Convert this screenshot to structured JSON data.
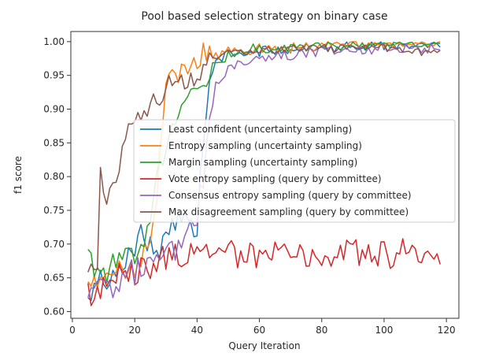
{
  "chart_data": {
    "type": "line",
    "title": "Pool based selection strategy on binary case",
    "xlabel": "Query Iteration",
    "ylabel": "f1 score",
    "xlim": [
      -0.5,
      124
    ],
    "ylim": [
      0.59,
      1.015
    ],
    "xticks": [
      0,
      20,
      40,
      60,
      80,
      100,
      120
    ],
    "yticks": [
      0.6,
      0.65,
      0.7,
      0.75,
      0.8,
      0.85,
      0.9,
      0.95,
      1.0
    ],
    "x_start": 5,
    "legend_position": "center-right",
    "grid": false,
    "series": [
      {
        "name": "Least confident (uncertainty sampling)",
        "color": "#1f77b4",
        "anchors": [
          [
            5,
            0.61
          ],
          [
            8,
            0.65
          ],
          [
            12,
            0.64
          ],
          [
            16,
            0.66
          ],
          [
            20,
            0.7
          ],
          [
            22,
            0.72
          ],
          [
            26,
            0.69
          ],
          [
            30,
            0.7
          ],
          [
            34,
            0.74
          ],
          [
            38,
            0.72
          ],
          [
            40,
            0.73
          ],
          [
            42,
            0.85
          ],
          [
            44,
            0.94
          ],
          [
            46,
            0.97
          ],
          [
            50,
            0.98
          ],
          [
            60,
            0.985
          ],
          [
            70,
            0.99
          ],
          [
            80,
            0.99
          ],
          [
            90,
            0.995
          ],
          [
            100,
            0.995
          ],
          [
            110,
            0.997
          ],
          [
            118,
            0.998
          ]
        ],
        "noise": [
          0.018,
          0.008
        ]
      },
      {
        "name": "Entropy sampling (uncertainty sampling)",
        "color": "#ff7f0e",
        "anchors": [
          [
            5,
            0.63
          ],
          [
            10,
            0.65
          ],
          [
            15,
            0.66
          ],
          [
            20,
            0.67
          ],
          [
            25,
            0.7
          ],
          [
            28,
            0.82
          ],
          [
            30,
            0.93
          ],
          [
            32,
            0.96
          ],
          [
            34,
            0.95
          ],
          [
            36,
            0.97
          ],
          [
            38,
            0.95
          ],
          [
            40,
            0.97
          ],
          [
            42,
            0.985
          ],
          [
            44,
            0.98
          ],
          [
            50,
            0.985
          ],
          [
            60,
            0.99
          ],
          [
            70,
            0.99
          ],
          [
            80,
            0.995
          ],
          [
            90,
            0.995
          ],
          [
            100,
            0.997
          ],
          [
            118,
            0.999
          ]
        ],
        "noise": [
          0.02,
          0.008
        ]
      },
      {
        "name": "Margin sampling (uncertainty sampling)",
        "color": "#2ca02c",
        "anchors": [
          [
            5,
            0.675
          ],
          [
            10,
            0.66
          ],
          [
            15,
            0.67
          ],
          [
            20,
            0.69
          ],
          [
            24,
            0.71
          ],
          [
            27,
            0.8
          ],
          [
            30,
            0.84
          ],
          [
            34,
            0.88
          ],
          [
            36,
            0.9
          ],
          [
            40,
            0.93
          ],
          [
            44,
            0.96
          ],
          [
            48,
            0.975
          ],
          [
            52,
            0.985
          ],
          [
            60,
            0.99
          ],
          [
            70,
            0.992
          ],
          [
            80,
            0.995
          ],
          [
            90,
            0.996
          ],
          [
            100,
            0.998
          ],
          [
            118,
            1.0
          ]
        ],
        "noise": [
          0.02,
          0.008
        ]
      },
      {
        "name": "Vote entropy sampling (query by committee)",
        "color": "#d62728",
        "anchors": [
          [
            5,
            0.62
          ],
          [
            10,
            0.64
          ],
          [
            15,
            0.65
          ],
          [
            20,
            0.66
          ],
          [
            25,
            0.67
          ],
          [
            30,
            0.68
          ],
          [
            40,
            0.685
          ],
          [
            50,
            0.685
          ],
          [
            60,
            0.685
          ],
          [
            80,
            0.685
          ],
          [
            100,
            0.685
          ],
          [
            118,
            0.69
          ]
        ],
        "noise": [
          0.022,
          0.022
        ]
      },
      {
        "name": "Consensus entropy sampling (query by committee)",
        "color": "#9467bd",
        "anchors": [
          [
            5,
            0.64
          ],
          [
            10,
            0.63
          ],
          [
            15,
            0.65
          ],
          [
            20,
            0.66
          ],
          [
            25,
            0.67
          ],
          [
            30,
            0.68
          ],
          [
            35,
            0.7
          ],
          [
            38,
            0.72
          ],
          [
            40,
            0.75
          ],
          [
            42,
            0.8
          ],
          [
            44,
            0.88
          ],
          [
            46,
            0.94
          ],
          [
            50,
            0.96
          ],
          [
            55,
            0.97
          ],
          [
            60,
            0.975
          ],
          [
            70,
            0.98
          ],
          [
            80,
            0.985
          ],
          [
            90,
            0.988
          ],
          [
            100,
            0.99
          ],
          [
            110,
            0.99
          ],
          [
            118,
            0.99
          ]
        ],
        "noise": [
          0.022,
          0.008
        ]
      },
      {
        "name": "Max disagreement sampling (query by committee)",
        "color": "#8c564b",
        "anchors": [
          [
            5,
            0.67
          ],
          [
            8,
            0.65
          ],
          [
            9,
            0.81
          ],
          [
            10,
            0.76
          ],
          [
            12,
            0.78
          ],
          [
            14,
            0.8
          ],
          [
            16,
            0.84
          ],
          [
            18,
            0.89
          ],
          [
            20,
            0.895
          ],
          [
            22,
            0.88
          ],
          [
            24,
            0.9
          ],
          [
            26,
            0.92
          ],
          [
            28,
            0.91
          ],
          [
            30,
            0.93
          ],
          [
            34,
            0.95
          ],
          [
            38,
            0.94
          ],
          [
            42,
            0.965
          ],
          [
            46,
            0.975
          ],
          [
            50,
            0.985
          ],
          [
            60,
            0.985
          ],
          [
            70,
            0.99
          ],
          [
            80,
            0.99
          ],
          [
            90,
            0.99
          ],
          [
            100,
            0.99
          ],
          [
            110,
            0.985
          ],
          [
            118,
            0.985
          ]
        ],
        "noise": [
          0.016,
          0.006
        ]
      }
    ]
  }
}
